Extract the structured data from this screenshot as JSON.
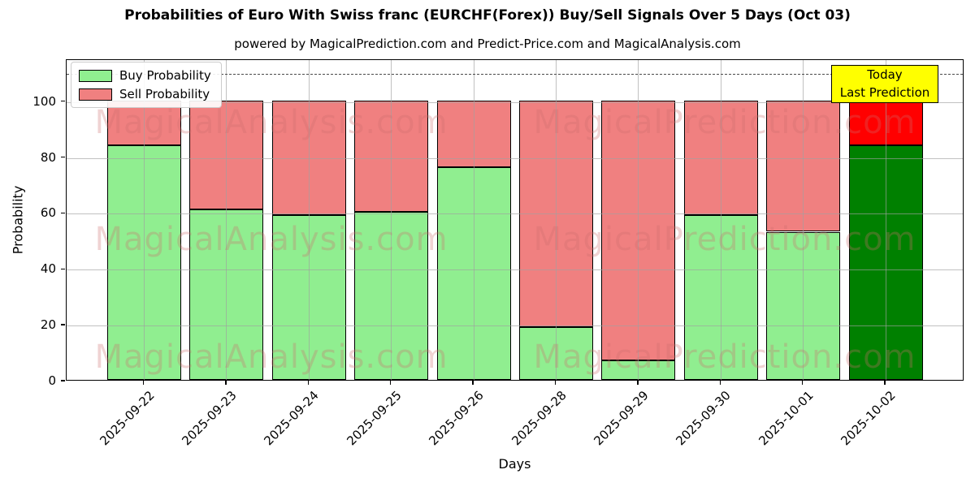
{
  "title": "Probabilities of Euro With Swiss franc (EURCHF(Forex)) Buy/Sell Signals Over 5 Days (Oct 03)",
  "subtitle": "powered by MagicalPrediction.com and Predict-Price.com and MagicalAnalysis.com",
  "watermarks": {
    "left": "MagicalAnalysis.com",
    "right": "MagicalPrediction.com"
  },
  "legend": {
    "items": [
      {
        "label": "Buy Probability",
        "color": "#90ee90"
      },
      {
        "label": "Sell Probability",
        "color": "#f08080"
      }
    ]
  },
  "annotation_box": {
    "line1": "Today",
    "line2": "Last Prediction",
    "bg_color": "#ffff00"
  },
  "axes": {
    "ylabel": "Probability",
    "xlabel": "Days",
    "yticks": [
      0,
      20,
      40,
      60,
      80,
      100
    ],
    "ylim": [
      0,
      115
    ],
    "dashed_line_y": 110,
    "grid": true
  },
  "chart_data": {
    "type": "bar",
    "stacked": true,
    "title": "Probabilities of Euro With Swiss franc (EURCHF(Forex)) Buy/Sell Signals Over 5 Days (Oct 03)",
    "xlabel": "Days",
    "ylabel": "Probability",
    "ylim": [
      0,
      115
    ],
    "categories": [
      "2025-09-22",
      "2025-09-23",
      "2025-09-24",
      "2025-09-25",
      "2025-09-26",
      "2025-09-28",
      "2025-09-29",
      "2025-09-30",
      "2025-10-01",
      "2025-10-02"
    ],
    "series": [
      {
        "name": "Buy Probability",
        "values": [
          84,
          61,
          59,
          60,
          76,
          19,
          7,
          59,
          53,
          84
        ]
      },
      {
        "name": "Sell Probability",
        "values": [
          16,
          39,
          41,
          40,
          24,
          81,
          93,
          41,
          47,
          16
        ]
      }
    ],
    "today_index": 9,
    "colors": {
      "buy": "#90ee90",
      "sell": "#f08080",
      "buy_today": "#008000",
      "sell_today": "#ff0000",
      "bar_edge": "#000000"
    },
    "legend_position": "upper left"
  }
}
